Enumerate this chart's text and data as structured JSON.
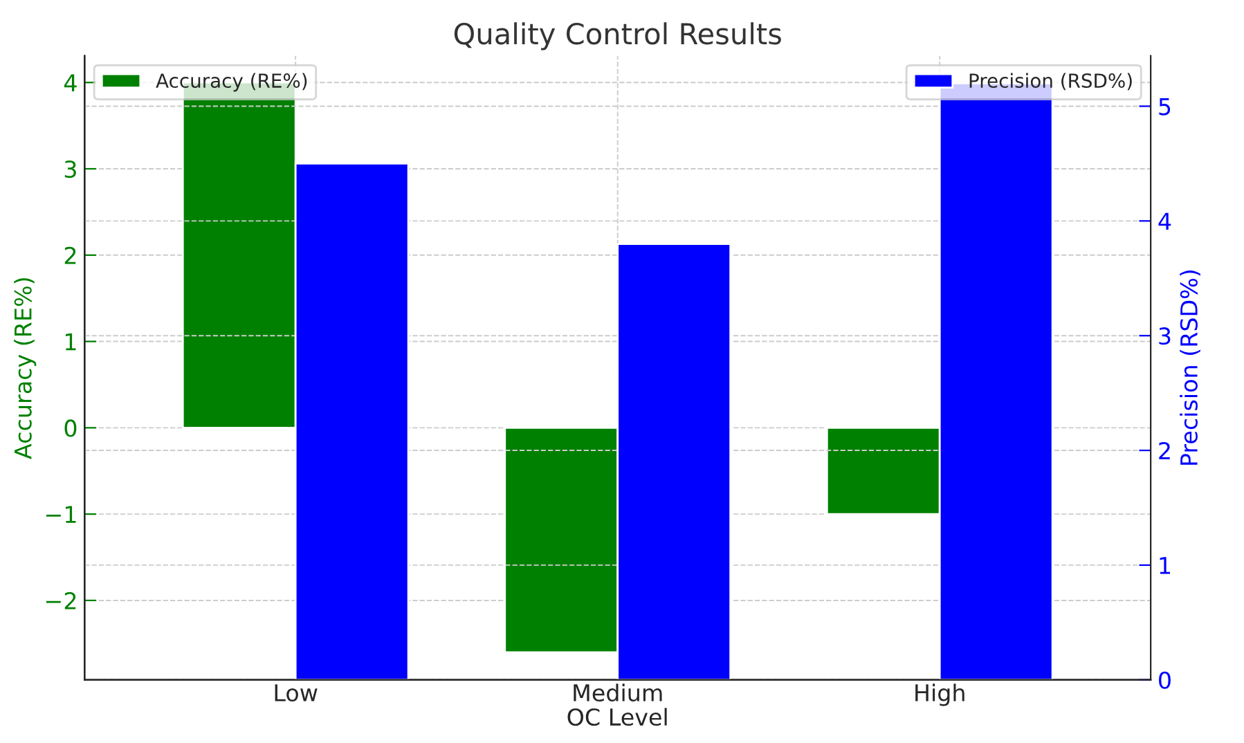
{
  "chart_data": {
    "type": "bar",
    "title": "Quality Control Results",
    "xlabel": "OC Level",
    "ylabel": "Accuracy (RE%)",
    "y2label": "Precision (RSD%)",
    "categories": [
      "Low",
      "Medium",
      "High"
    ],
    "series": [
      {
        "name": "Accuracy (RE%)",
        "color": "#008000",
        "values": [
          4.0,
          -2.6,
          -1.0
        ]
      },
      {
        "name": "Precision (RSD%)",
        "color": "#0000ff",
        "values": [
          4.5,
          3.8,
          5.2
        ],
        "axis": "y2"
      }
    ],
    "ylim": [
      -2.92,
      4.31
    ],
    "yticks": [
      {
        "value": -2,
        "label": "−2"
      },
      {
        "value": -1,
        "label": "−1"
      },
      0,
      1,
      2,
      3,
      4
    ],
    "y2lim": [
      0,
      5.44
    ],
    "y2ticks": [
      0,
      1,
      2,
      3,
      4,
      5
    ],
    "grid": true,
    "legend": "top"
  }
}
